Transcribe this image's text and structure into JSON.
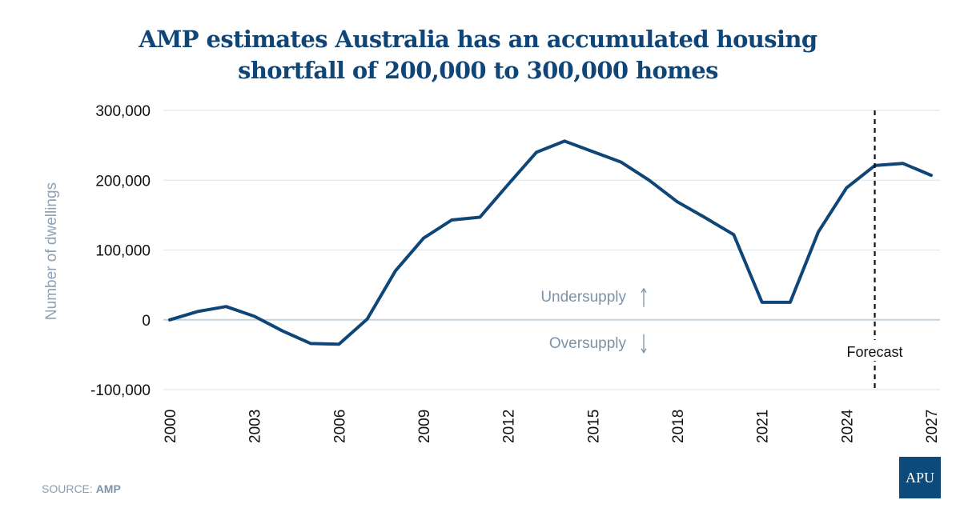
{
  "chart_data": {
    "type": "line",
    "title": [
      "AMP estimates Australia has an accumulated housing",
      "shortfall of 200,000 to 300,000 homes"
    ],
    "xlabel": "",
    "ylabel": "Number of dwellings",
    "ylim": [
      -100000,
      300000
    ],
    "xlim": [
      2000,
      2027
    ],
    "y_ticks": [
      300000,
      200000,
      100000,
      0,
      -100000
    ],
    "y_tick_labels": [
      "300,000",
      "200,000",
      "100,000",
      "0",
      "-100,000"
    ],
    "x_ticks": [
      2000,
      2003,
      2006,
      2009,
      2012,
      2015,
      2018,
      2021,
      2024,
      2027
    ],
    "x_tick_labels": [
      "2000",
      "2003",
      "2006",
      "2009",
      "2012",
      "2015",
      "2018",
      "2021",
      "2024",
      "2027"
    ],
    "grid": true,
    "series": [
      {
        "name": "Accumulated housing shortfall",
        "color": "#0f4677",
        "x": [
          2000,
          2001,
          2002,
          2003,
          2004,
          2005,
          2006,
          2007,
          2008,
          2009,
          2010,
          2011,
          2012,
          2013,
          2014,
          2015,
          2016,
          2017,
          2018,
          2019,
          2020,
          2021,
          2022,
          2023,
          2024,
          2025,
          2026,
          2027
        ],
        "values": [
          0,
          12000,
          19000,
          5000,
          -16000,
          -34000,
          -35000,
          1000,
          70000,
          117000,
          143000,
          147000,
          194000,
          240000,
          256000,
          241000,
          226000,
          200000,
          169000,
          146000,
          122000,
          25000,
          25000,
          126000,
          189000,
          221000,
          224000,
          207000
        ]
      }
    ],
    "annotations": {
      "undersupply": "Undersupply",
      "oversupply": "Oversupply",
      "forecast": "Forecast",
      "forecast_x": 2025
    }
  },
  "footer": {
    "source_prefix": "SOURCE: ",
    "source_name": "AMP",
    "logo_text": "APU"
  },
  "colors": {
    "line": "#0f4677",
    "grid": "#dfe6ec",
    "zero_line": "#c4d2de",
    "muted_text": "#7d93a8",
    "logo_bg": "#0d4a7c"
  }
}
